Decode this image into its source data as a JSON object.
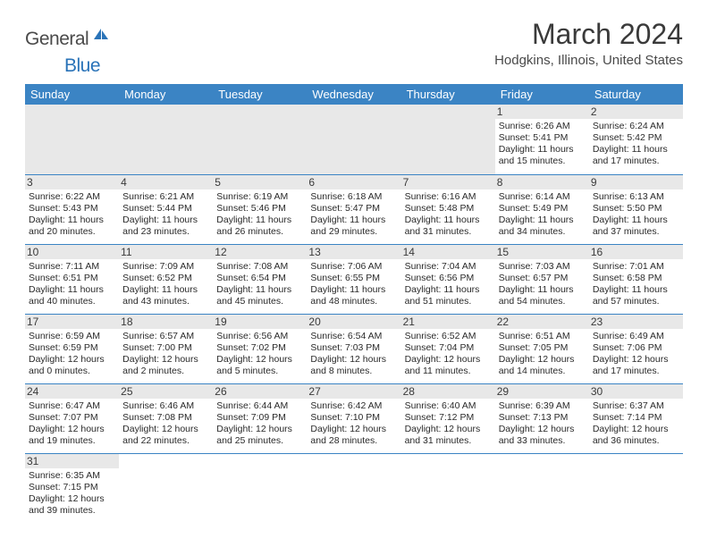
{
  "logo": {
    "general": "General",
    "blue": "Blue"
  },
  "title": "March 2024",
  "location": "Hodgkins, Illinois, United States",
  "colors": {
    "header_bg": "#3b84c4",
    "header_text": "#ffffff",
    "daynum_bg": "#e8e8e8",
    "border": "#3b84c4",
    "text": "#2a2a2a",
    "logo_blue": "#2a73b8"
  },
  "weekdays": [
    "Sunday",
    "Monday",
    "Tuesday",
    "Wednesday",
    "Thursday",
    "Friday",
    "Saturday"
  ],
  "days": {
    "1": {
      "sunrise": "Sunrise: 6:26 AM",
      "sunset": "Sunset: 5:41 PM",
      "daylight": "Daylight: 11 hours and 15 minutes."
    },
    "2": {
      "sunrise": "Sunrise: 6:24 AM",
      "sunset": "Sunset: 5:42 PM",
      "daylight": "Daylight: 11 hours and 17 minutes."
    },
    "3": {
      "sunrise": "Sunrise: 6:22 AM",
      "sunset": "Sunset: 5:43 PM",
      "daylight": "Daylight: 11 hours and 20 minutes."
    },
    "4": {
      "sunrise": "Sunrise: 6:21 AM",
      "sunset": "Sunset: 5:44 PM",
      "daylight": "Daylight: 11 hours and 23 minutes."
    },
    "5": {
      "sunrise": "Sunrise: 6:19 AM",
      "sunset": "Sunset: 5:46 PM",
      "daylight": "Daylight: 11 hours and 26 minutes."
    },
    "6": {
      "sunrise": "Sunrise: 6:18 AM",
      "sunset": "Sunset: 5:47 PM",
      "daylight": "Daylight: 11 hours and 29 minutes."
    },
    "7": {
      "sunrise": "Sunrise: 6:16 AM",
      "sunset": "Sunset: 5:48 PM",
      "daylight": "Daylight: 11 hours and 31 minutes."
    },
    "8": {
      "sunrise": "Sunrise: 6:14 AM",
      "sunset": "Sunset: 5:49 PM",
      "daylight": "Daylight: 11 hours and 34 minutes."
    },
    "9": {
      "sunrise": "Sunrise: 6:13 AM",
      "sunset": "Sunset: 5:50 PM",
      "daylight": "Daylight: 11 hours and 37 minutes."
    },
    "10": {
      "sunrise": "Sunrise: 7:11 AM",
      "sunset": "Sunset: 6:51 PM",
      "daylight": "Daylight: 11 hours and 40 minutes."
    },
    "11": {
      "sunrise": "Sunrise: 7:09 AM",
      "sunset": "Sunset: 6:52 PM",
      "daylight": "Daylight: 11 hours and 43 minutes."
    },
    "12": {
      "sunrise": "Sunrise: 7:08 AM",
      "sunset": "Sunset: 6:54 PM",
      "daylight": "Daylight: 11 hours and 45 minutes."
    },
    "13": {
      "sunrise": "Sunrise: 7:06 AM",
      "sunset": "Sunset: 6:55 PM",
      "daylight": "Daylight: 11 hours and 48 minutes."
    },
    "14": {
      "sunrise": "Sunrise: 7:04 AM",
      "sunset": "Sunset: 6:56 PM",
      "daylight": "Daylight: 11 hours and 51 minutes."
    },
    "15": {
      "sunrise": "Sunrise: 7:03 AM",
      "sunset": "Sunset: 6:57 PM",
      "daylight": "Daylight: 11 hours and 54 minutes."
    },
    "16": {
      "sunrise": "Sunrise: 7:01 AM",
      "sunset": "Sunset: 6:58 PM",
      "daylight": "Daylight: 11 hours and 57 minutes."
    },
    "17": {
      "sunrise": "Sunrise: 6:59 AM",
      "sunset": "Sunset: 6:59 PM",
      "daylight": "Daylight: 12 hours and 0 minutes."
    },
    "18": {
      "sunrise": "Sunrise: 6:57 AM",
      "sunset": "Sunset: 7:00 PM",
      "daylight": "Daylight: 12 hours and 2 minutes."
    },
    "19": {
      "sunrise": "Sunrise: 6:56 AM",
      "sunset": "Sunset: 7:02 PM",
      "daylight": "Daylight: 12 hours and 5 minutes."
    },
    "20": {
      "sunrise": "Sunrise: 6:54 AM",
      "sunset": "Sunset: 7:03 PM",
      "daylight": "Daylight: 12 hours and 8 minutes."
    },
    "21": {
      "sunrise": "Sunrise: 6:52 AM",
      "sunset": "Sunset: 7:04 PM",
      "daylight": "Daylight: 12 hours and 11 minutes."
    },
    "22": {
      "sunrise": "Sunrise: 6:51 AM",
      "sunset": "Sunset: 7:05 PM",
      "daylight": "Daylight: 12 hours and 14 minutes."
    },
    "23": {
      "sunrise": "Sunrise: 6:49 AM",
      "sunset": "Sunset: 7:06 PM",
      "daylight": "Daylight: 12 hours and 17 minutes."
    },
    "24": {
      "sunrise": "Sunrise: 6:47 AM",
      "sunset": "Sunset: 7:07 PM",
      "daylight": "Daylight: 12 hours and 19 minutes."
    },
    "25": {
      "sunrise": "Sunrise: 6:46 AM",
      "sunset": "Sunset: 7:08 PM",
      "daylight": "Daylight: 12 hours and 22 minutes."
    },
    "26": {
      "sunrise": "Sunrise: 6:44 AM",
      "sunset": "Sunset: 7:09 PM",
      "daylight": "Daylight: 12 hours and 25 minutes."
    },
    "27": {
      "sunrise": "Sunrise: 6:42 AM",
      "sunset": "Sunset: 7:10 PM",
      "daylight": "Daylight: 12 hours and 28 minutes."
    },
    "28": {
      "sunrise": "Sunrise: 6:40 AM",
      "sunset": "Sunset: 7:12 PM",
      "daylight": "Daylight: 12 hours and 31 minutes."
    },
    "29": {
      "sunrise": "Sunrise: 6:39 AM",
      "sunset": "Sunset: 7:13 PM",
      "daylight": "Daylight: 12 hours and 33 minutes."
    },
    "30": {
      "sunrise": "Sunrise: 6:37 AM",
      "sunset": "Sunset: 7:14 PM",
      "daylight": "Daylight: 12 hours and 36 minutes."
    },
    "31": {
      "sunrise": "Sunrise: 6:35 AM",
      "sunset": "Sunset: 7:15 PM",
      "daylight": "Daylight: 12 hours and 39 minutes."
    }
  },
  "layout": [
    [
      null,
      null,
      null,
      null,
      null,
      "1",
      "2"
    ],
    [
      "3",
      "4",
      "5",
      "6",
      "7",
      "8",
      "9"
    ],
    [
      "10",
      "11",
      "12",
      "13",
      "14",
      "15",
      "16"
    ],
    [
      "17",
      "18",
      "19",
      "20",
      "21",
      "22",
      "23"
    ],
    [
      "24",
      "25",
      "26",
      "27",
      "28",
      "29",
      "30"
    ],
    [
      "31",
      null,
      null,
      null,
      null,
      null,
      null
    ]
  ]
}
